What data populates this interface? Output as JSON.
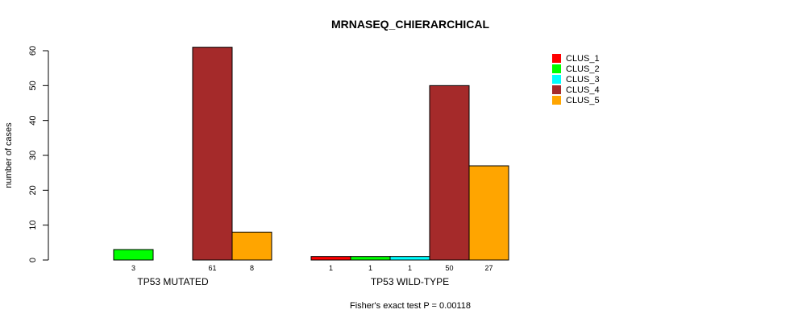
{
  "chart_data": {
    "type": "bar",
    "title": "MRNASEQ_CHIERARCHICAL",
    "xlabel": "",
    "ylabel": "number of cases",
    "ylim": [
      0,
      60
    ],
    "yticks": [
      0,
      10,
      20,
      30,
      40,
      50,
      60
    ],
    "categories": [
      "TP53 MUTATED",
      "TP53 WILD-TYPE"
    ],
    "series": [
      {
        "name": "CLUS_1",
        "color": "#ff0000",
        "values": [
          0,
          1
        ]
      },
      {
        "name": "CLUS_2",
        "color": "#00ff00",
        "values": [
          3,
          1
        ]
      },
      {
        "name": "CLUS_3",
        "color": "#00ffff",
        "values": [
          0,
          1
        ]
      },
      {
        "name": "CLUS_4",
        "color": "#a52a2a",
        "values": [
          61,
          50
        ]
      },
      {
        "name": "CLUS_5",
        "color": "#ffa500",
        "values": [
          8,
          27
        ]
      }
    ],
    "data_labels": [
      [
        "",
        "3",
        "",
        "61",
        "8"
      ],
      [
        "1",
        "1",
        "1",
        "50",
        "27"
      ]
    ],
    "legend_position": "top-right",
    "grid": false,
    "footnote": "Fisher's exact test P = 0.00118"
  }
}
